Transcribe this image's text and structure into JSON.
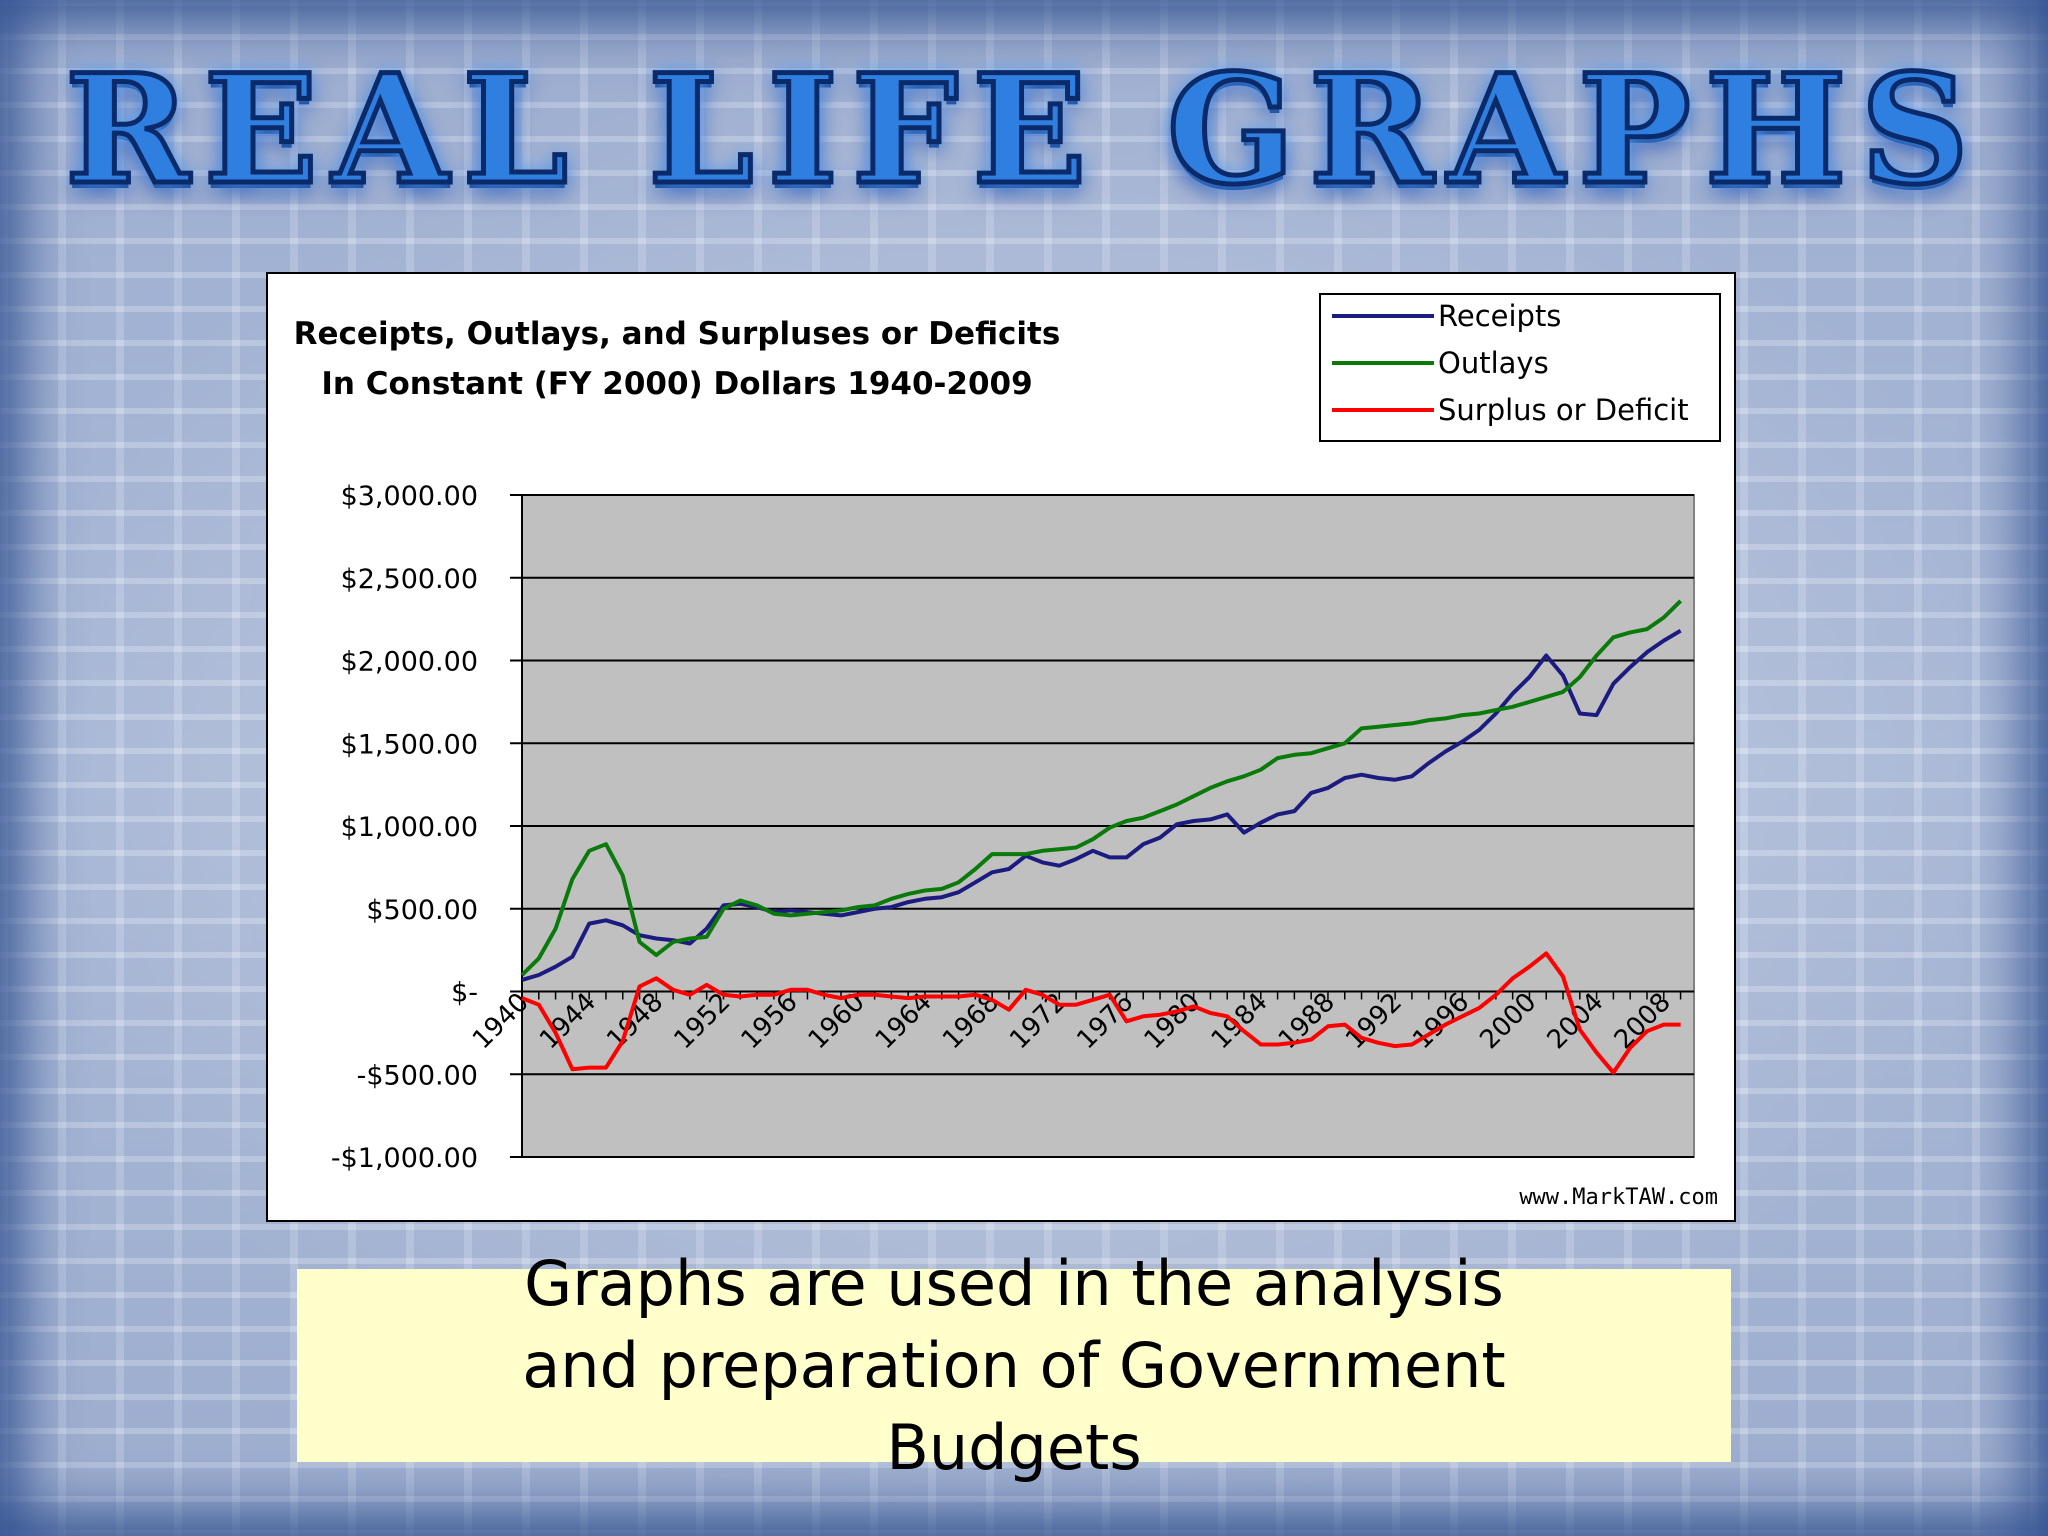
{
  "slide": {
    "headline": "REAL LIFE GRAPHS",
    "caption": "Graphs are used in the analysis and preparation of Government Budgets"
  },
  "chart_data": {
    "type": "line",
    "title": "Receipts, Outlays, and Surpluses or Deficits",
    "subtitle": "In Constant (FY 2000) Dollars 1940-2009",
    "watermark": "www.MarkTAW.com",
    "ylim": [
      -1000,
      3000
    ],
    "y_ticks": [
      3000,
      2500,
      2000,
      1500,
      1000,
      500,
      0,
      -500,
      -1000
    ],
    "y_tick_labels": [
      "$3,000.00",
      "$2,500.00",
      "$2,000.00",
      "$1,500.00",
      "$1,000.00",
      "$500.00",
      "$-",
      "-$500.00",
      "-$1,000.00"
    ],
    "x_tick_labels": [
      "1940",
      "1944",
      "1948",
      "1952",
      "1956",
      "1960",
      "1964",
      "1968",
      "1972",
      "1976",
      "1980",
      "1984",
      "1988",
      "1992",
      "1996",
      "2000",
      "2004",
      "2008"
    ],
    "x_tick_years": [
      1940,
      1944,
      1948,
      1952,
      1956,
      1960,
      1964,
      1968,
      1972,
      1976,
      1980,
      1984,
      1988,
      1992,
      1996,
      2000,
      2004,
      2008
    ],
    "grid": true,
    "legend_position": "top-right",
    "plot_background": "#c0c0c0",
    "series": [
      {
        "name": "Receipts",
        "color": "#1c1c80",
        "x": [
          1940,
          1941,
          1942,
          1943,
          1944,
          1945,
          1946,
          1947,
          1948,
          1949,
          1950,
          1951,
          1952,
          1953,
          1954,
          1955,
          1956,
          1957,
          1958,
          1959,
          1960,
          1961,
          1962,
          1963,
          1964,
          1965,
          1966,
          1967,
          1968,
          1969,
          1970,
          1971,
          1972,
          1973,
          1974,
          1975,
          1976,
          1977,
          1978,
          1979,
          1980,
          1981,
          1982,
          1983,
          1984,
          1985,
          1986,
          1987,
          1988,
          1989,
          1990,
          1991,
          1992,
          1993,
          1994,
          1995,
          1996,
          1997,
          1998,
          1999,
          2000,
          2001,
          2002,
          2003,
          2004,
          2005,
          2006,
          2007,
          2008,
          2009
        ],
        "values": [
          70,
          100,
          150,
          210,
          410,
          430,
          400,
          340,
          320,
          310,
          290,
          380,
          520,
          530,
          510,
          480,
          490,
          480,
          470,
          460,
          480,
          500,
          510,
          540,
          560,
          570,
          600,
          660,
          720,
          740,
          820,
          780,
          760,
          800,
          850,
          810,
          810,
          890,
          930,
          1010,
          1030,
          1040,
          1070,
          960,
          1020,
          1070,
          1090,
          1200,
          1230,
          1290,
          1310,
          1290,
          1280,
          1300,
          1380,
          1450,
          1510,
          1580,
          1680,
          1800,
          1900,
          2030,
          1910,
          1680,
          1670,
          1860,
          1960,
          2050,
          2120,
          2180
        ]
      },
      {
        "name": "Outlays",
        "color": "#0a7a0a",
        "x": [
          1940,
          1941,
          1942,
          1943,
          1944,
          1945,
          1946,
          1947,
          1948,
          1949,
          1950,
          1951,
          1952,
          1953,
          1954,
          1955,
          1956,
          1957,
          1958,
          1959,
          1960,
          1961,
          1962,
          1963,
          1964,
          1965,
          1966,
          1967,
          1968,
          1969,
          1970,
          1971,
          1972,
          1973,
          1974,
          1975,
          1976,
          1977,
          1978,
          1979,
          1980,
          1981,
          1982,
          1983,
          1984,
          1985,
          1986,
          1987,
          1988,
          1989,
          1990,
          1991,
          1992,
          1993,
          1994,
          1995,
          1996,
          1997,
          1998,
          1999,
          2000,
          2001,
          2002,
          2003,
          2004,
          2005,
          2006,
          2007,
          2008,
          2009
        ],
        "values": [
          100,
          200,
          380,
          680,
          850,
          890,
          700,
          300,
          220,
          300,
          320,
          330,
          500,
          550,
          520,
          470,
          460,
          470,
          480,
          490,
          510,
          520,
          560,
          590,
          610,
          620,
          660,
          740,
          830,
          830,
          830,
          850,
          860,
          870,
          920,
          990,
          1030,
          1050,
          1090,
          1130,
          1180,
          1230,
          1270,
          1300,
          1340,
          1410,
          1430,
          1440,
          1470,
          1500,
          1590,
          1600,
          1610,
          1620,
          1640,
          1650,
          1670,
          1680,
          1700,
          1720,
          1750,
          1780,
          1810,
          1900,
          2030,
          2140,
          2170,
          2190,
          2260,
          2360
        ]
      },
      {
        "name": "Surplus or Deficit",
        "color": "#ff0000",
        "x": [
          1940,
          1941,
          1942,
          1943,
          1944,
          1945,
          1946,
          1947,
          1948,
          1949,
          1950,
          1951,
          1952,
          1953,
          1954,
          1955,
          1956,
          1957,
          1958,
          1959,
          1960,
          1961,
          1962,
          1963,
          1964,
          1965,
          1966,
          1967,
          1968,
          1969,
          1970,
          1971,
          1972,
          1973,
          1974,
          1975,
          1976,
          1977,
          1978,
          1979,
          1980,
          1981,
          1982,
          1983,
          1984,
          1985,
          1986,
          1987,
          1988,
          1989,
          1990,
          1991,
          1992,
          1993,
          1994,
          1995,
          1996,
          1997,
          1998,
          1999,
          2000,
          2001,
          2002,
          2003,
          2004,
          2005,
          2006,
          2007,
          2008,
          2009
        ],
        "values": [
          -40,
          -80,
          -250,
          -470,
          -460,
          -460,
          -300,
          30,
          80,
          10,
          -20,
          40,
          -20,
          -30,
          -20,
          -20,
          10,
          10,
          -20,
          -40,
          -20,
          -20,
          -30,
          -40,
          -30,
          -30,
          -30,
          -20,
          -50,
          -110,
          10,
          -20,
          -80,
          -80,
          -50,
          -20,
          -180,
          -150,
          -140,
          -120,
          -90,
          -130,
          -150,
          -240,
          -320,
          -320,
          -310,
          -290,
          -210,
          -200,
          -280,
          -310,
          -330,
          -320,
          -260,
          -200,
          -150,
          -100,
          -20,
          80,
          150,
          230,
          90,
          -230,
          -370,
          -490,
          -340,
          -240,
          -200,
          -200
        ]
      }
    ]
  }
}
